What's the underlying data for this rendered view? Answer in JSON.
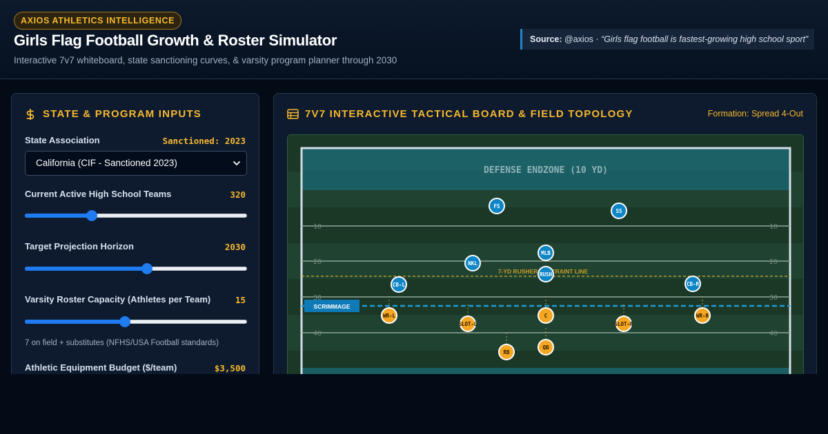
{
  "header": {
    "brand": "AXIOS ATHLETICS INTELLIGENCE",
    "title": "Girls Flag Football Growth & Roster Simulator",
    "subtitle": "Interactive 7v7 whiteboard, state sanctioning curves, & varsity program planner through 2030",
    "source_label": "Source:",
    "source_handle": "@axios ·",
    "source_quote": "“Girls flag football is fastest-growing high school sport”"
  },
  "inputs_panel": {
    "heading": "STATE & PROGRAM INPUTS",
    "heading_icon": "dollar-icon",
    "state": {
      "label": "State Association",
      "value": "Sanctioned: 2023",
      "selected": "California (CIF - Sanctioned 2023)"
    },
    "teams": {
      "label": "Current Active High School Teams",
      "value": "320",
      "level": 0.3
    },
    "horizon": {
      "label": "Target Projection Horizon",
      "value": "2030",
      "level": 0.55
    },
    "roster": {
      "label": "Varsity Roster Capacity (Athletes per Team)",
      "value": "15",
      "level": 0.45,
      "note": "7 on field + substitutes (NFHS/USA Football standards)"
    },
    "budget": {
      "label": "Athletic Equipment Budget ($/team)",
      "value": "$3,500"
    }
  },
  "board_panel": {
    "heading": "7V7 INTERACTIVE TACTICAL BOARD & FIELD TOPOLOGY",
    "heading_icon": "table-icon",
    "formation": "Formation: Spread 4-Out",
    "endzone_label": "DEFENSE ENDZONE (10 YD)",
    "yard_labels": [
      "10",
      "20",
      "30",
      "40"
    ],
    "rusher_line_label": "7-YD RUSHER RESTRAINT LINE",
    "scrimmage_label": "SCRIMMAGE",
    "defense": [
      {
        "label": "FS"
      },
      {
        "label": "SS"
      },
      {
        "label": "MLB"
      },
      {
        "label": "NKL"
      },
      {
        "label": "RUSH"
      },
      {
        "label": "CB-L"
      },
      {
        "label": "CB-R"
      }
    ],
    "offense": [
      {
        "label": "WR-L"
      },
      {
        "label": "SLOT-L"
      },
      {
        "label": "C"
      },
      {
        "label": "SLOT-R"
      },
      {
        "label": "WR-R"
      },
      {
        "label": "QB"
      },
      {
        "label": "RB"
      }
    ],
    "colors": {
      "defense": "#0e86c6",
      "offense": "#f5a623",
      "accent": "#f5b82e",
      "scrimmage": "#1e88c8"
    }
  }
}
